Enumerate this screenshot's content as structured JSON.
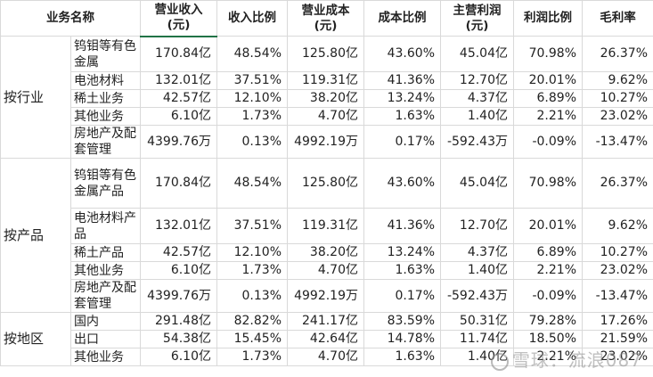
{
  "headers": {
    "segment": "业务名称",
    "revenue": "营业收入(元)",
    "revenue_ratio": "收入比例",
    "cost": "营业成本(元)",
    "cost_ratio": "成本比例",
    "profit": "主营利润(元)",
    "profit_ratio": "利润比例",
    "margin": "毛利率"
  },
  "groups": [
    {
      "label": "按行业",
      "rows": [
        {
          "item": "钨钼等有色金属",
          "revenue": "170.84亿",
          "revenue_ratio": "48.54%",
          "cost": "125.80亿",
          "cost_ratio": "43.60%",
          "profit": "45.04亿",
          "profit_ratio": "70.98%",
          "margin": "26.37%"
        },
        {
          "item": "电池材料",
          "revenue": "132.01亿",
          "revenue_ratio": "37.51%",
          "cost": "119.31亿",
          "cost_ratio": "41.36%",
          "profit": "12.70亿",
          "profit_ratio": "20.01%",
          "margin": "9.62%"
        },
        {
          "item": "稀土业务",
          "revenue": "42.57亿",
          "revenue_ratio": "12.10%",
          "cost": "38.20亿",
          "cost_ratio": "13.24%",
          "profit": "4.37亿",
          "profit_ratio": "6.89%",
          "margin": "10.27%"
        },
        {
          "item": "其他业务",
          "revenue": "6.10亿",
          "revenue_ratio": "1.73%",
          "cost": "4.70亿",
          "cost_ratio": "1.63%",
          "profit": "1.40亿",
          "profit_ratio": "2.21%",
          "margin": "23.02%"
        },
        {
          "item": "房地产及配套管理",
          "revenue": "4399.76万",
          "revenue_ratio": "0.13%",
          "cost": "4992.19万",
          "cost_ratio": "0.17%",
          "profit": "-592.43万",
          "profit_ratio": "-0.09%",
          "margin": "-13.47%"
        }
      ]
    },
    {
      "label": "按产品",
      "rows": [
        {
          "item": "钨钼等有色金属产品",
          "revenue": "170.84亿",
          "revenue_ratio": "48.54%",
          "cost": "125.80亿",
          "cost_ratio": "43.60%",
          "profit": "45.04亿",
          "profit_ratio": "70.98%",
          "margin": "26.37%"
        },
        {
          "item": "电池材料产品",
          "revenue": "132.01亿",
          "revenue_ratio": "37.51%",
          "cost": "119.31亿",
          "cost_ratio": "41.36%",
          "profit": "12.70亿",
          "profit_ratio": "20.01%",
          "margin": "9.62%"
        },
        {
          "item": "稀土产品",
          "revenue": "42.57亿",
          "revenue_ratio": "12.10%",
          "cost": "38.20亿",
          "cost_ratio": "13.24%",
          "profit": "4.37亿",
          "profit_ratio": "6.89%",
          "margin": "10.27%"
        },
        {
          "item": "其他业务",
          "revenue": "6.10亿",
          "revenue_ratio": "1.73%",
          "cost": "4.70亿",
          "cost_ratio": "1.63%",
          "profit": "1.40亿",
          "profit_ratio": "2.21%",
          "margin": "23.02%"
        },
        {
          "item": "房地产及配套管理",
          "revenue": "4399.76万",
          "revenue_ratio": "0.13%",
          "cost": "4992.19万",
          "cost_ratio": "0.17%",
          "profit": "-592.43万",
          "profit_ratio": "-0.09%",
          "margin": "-13.47%"
        }
      ]
    },
    {
      "label": "按地区",
      "rows": [
        {
          "item": "国内",
          "revenue": "291.48亿",
          "revenue_ratio": "82.82%",
          "cost": "241.17亿",
          "cost_ratio": "83.59%",
          "profit": "50.31亿",
          "profit_ratio": "79.28%",
          "margin": "17.26%"
        },
        {
          "item": "出口",
          "revenue": "54.38亿",
          "revenue_ratio": "15.45%",
          "cost": "42.64亿",
          "cost_ratio": "14.78%",
          "profit": "11.74亿",
          "profit_ratio": "18.50%",
          "margin": "21.59%"
        },
        {
          "item": "其他业务",
          "revenue": "6.10亿",
          "revenue_ratio": "1.73%",
          "cost": "4.70亿",
          "cost_ratio": "1.63%",
          "profit": "1.40亿",
          "profit_ratio": "2.21%",
          "margin": "23.02%"
        }
      ]
    }
  ],
  "watermark": "雪球：流浪087"
}
